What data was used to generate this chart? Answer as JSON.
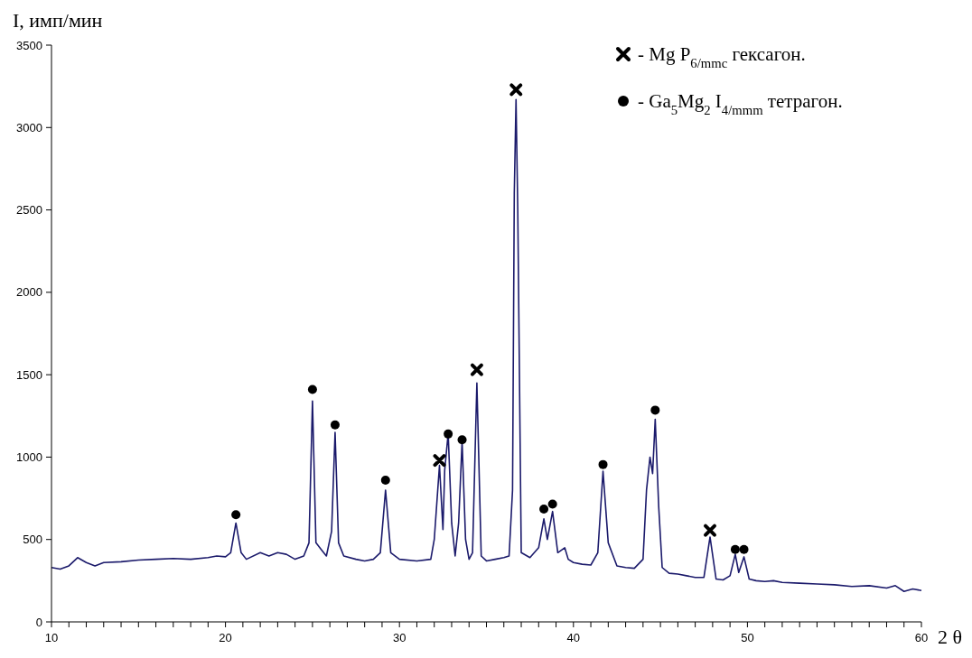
{
  "chart_data": {
    "type": "line",
    "ylabel": "I, имп/мин",
    "xlabel": "2 θ",
    "xlim": [
      10,
      60
    ],
    "ylim": [
      0,
      3500
    ],
    "xticks": [
      10,
      {
        "value": 11,
        "label": null
      },
      {
        "value": 12,
        "label": null
      },
      {
        "value": 13,
        "label": null
      },
      {
        "value": 14,
        "label": null
      },
      {
        "value": 15,
        "label": null
      },
      {
        "value": 16,
        "label": null
      },
      {
        "value": 17,
        "label": null
      },
      {
        "value": 18,
        "label": null
      },
      {
        "value": 19,
        "label": null
      },
      20,
      {
        "value": 21,
        "label": null
      },
      {
        "value": 22,
        "label": null
      },
      {
        "value": 23,
        "label": null
      },
      {
        "value": 24,
        "label": null
      },
      {
        "value": 25,
        "label": null
      },
      {
        "value": 26,
        "label": null
      },
      {
        "value": 27,
        "label": null
      },
      {
        "value": 28,
        "label": null
      },
      {
        "value": 29,
        "label": null
      },
      30,
      {
        "value": 31,
        "label": null
      },
      {
        "value": 32,
        "label": null
      },
      {
        "value": 33,
        "label": null
      },
      {
        "value": 34,
        "label": null
      },
      {
        "value": 35,
        "label": null
      },
      {
        "value": 36,
        "label": null
      },
      {
        "value": 37,
        "label": null
      },
      {
        "value": 38,
        "label": null
      },
      {
        "value": 39,
        "label": null
      },
      40,
      {
        "value": 41,
        "label": null
      },
      {
        "value": 42,
        "label": null
      },
      {
        "value": 43,
        "label": null
      },
      {
        "value": 44,
        "label": null
      },
      {
        "value": 45,
        "label": null
      },
      {
        "value": 46,
        "label": null
      },
      {
        "value": 47,
        "label": null
      },
      {
        "value": 48,
        "label": null
      },
      {
        "value": 49,
        "label": null
      },
      50,
      {
        "value": 51,
        "label": null
      },
      {
        "value": 52,
        "label": null
      },
      {
        "value": 53,
        "label": null
      },
      {
        "value": 54,
        "label": null
      },
      {
        "value": 55,
        "label": null
      },
      {
        "value": 56,
        "label": null
      },
      {
        "value": 57,
        "label": null
      },
      {
        "value": 58,
        "label": null
      },
      {
        "value": 59,
        "label": null
      },
      60
    ],
    "yticks": [
      0,
      500,
      1000,
      1500,
      2000,
      2500,
      3000,
      3500
    ],
    "grid": false,
    "legend": "top right",
    "series": [
      {
        "color": "#1b1a6b",
        "marker": "none",
        "line_style": "solid",
        "x": [
          10,
          10.5,
          11,
          11.5,
          12,
          12.5,
          13,
          14,
          15,
          16,
          17,
          18,
          19,
          19.5,
          20,
          20.3,
          20.6,
          20.9,
          21.2,
          22,
          22.5,
          23,
          23.5,
          24,
          24.5,
          24.8,
          25.0,
          25.2,
          25.5,
          25.8,
          26.1,
          26.3,
          26.5,
          26.8,
          27.5,
          28,
          28.5,
          28.9,
          29.2,
          29.5,
          30,
          31,
          31.8,
          32.0,
          32.3,
          32.5,
          32.6,
          32.8,
          33.0,
          33.2,
          33.4,
          33.6,
          33.8,
          34.0,
          34.2,
          34.45,
          34.7,
          35,
          35.5,
          36,
          36.3,
          36.5,
          36.6,
          36.7,
          36.8,
          37.0,
          37.5,
          38.0,
          38.3,
          38.5,
          38.8,
          39.1,
          39.5,
          39.7,
          40,
          40.5,
          41,
          41.4,
          41.7,
          42.0,
          42.5,
          43,
          43.5,
          44,
          44.2,
          44.4,
          44.55,
          44.7,
          44.9,
          45.1,
          45.5,
          46,
          46.5,
          47,
          47.5,
          47.85,
          48.2,
          48.6,
          49,
          49.3,
          49.5,
          49.8,
          50.1,
          50.5,
          51,
          51.5,
          52,
          53,
          54,
          55,
          56,
          57,
          58,
          58.5,
          59,
          59.5,
          60
        ],
        "values": [
          330,
          320,
          340,
          390,
          360,
          340,
          360,
          365,
          375,
          380,
          385,
          380,
          390,
          400,
          395,
          420,
          600,
          420,
          380,
          420,
          400,
          420,
          410,
          380,
          400,
          480,
          1340,
          480,
          440,
          400,
          550,
          1150,
          480,
          400,
          380,
          370,
          380,
          420,
          800,
          420,
          380,
          370,
          380,
          500,
          950,
          560,
          920,
          1145,
          600,
          400,
          600,
          1095,
          500,
          380,
          420,
          1450,
          400,
          370,
          380,
          390,
          400,
          800,
          2600,
          3170,
          2500,
          420,
          390,
          450,
          625,
          500,
          670,
          420,
          450,
          380,
          360,
          350,
          345,
          420,
          915,
          480,
          340,
          330,
          325,
          380,
          800,
          1000,
          900,
          1230,
          700,
          330,
          295,
          290,
          280,
          270,
          270,
          515,
          260,
          255,
          280,
          410,
          300,
          395,
          260,
          250,
          245,
          250,
          240,
          235,
          230,
          225,
          215,
          220,
          205,
          220,
          185,
          200,
          190
        ]
      },
      {
        "type": "scatter",
        "name": "- Mg P$_{6/mmc}$ гексагон.",
        "color": "#000000",
        "marker": "cross",
        "x": [
          32.3,
          34.45,
          36.7,
          47.85
        ],
        "values": [
          980,
          1530,
          3230,
          555
        ]
      },
      {
        "type": "scatter",
        "name": "- Ga$_{5}$Mg$_{2}$ I$_{4/mmm}$  тетрагон.",
        "color": "#000000",
        "marker": "circle",
        "x": [
          20.6,
          25.0,
          26.3,
          29.2,
          32.8,
          33.6,
          38.3,
          38.8,
          41.7,
          44.7,
          49.3,
          49.8
        ],
        "values": [
          650,
          1410,
          1195,
          860,
          1140,
          1105,
          685,
          715,
          955,
          1285,
          440,
          440
        ]
      }
    ]
  }
}
